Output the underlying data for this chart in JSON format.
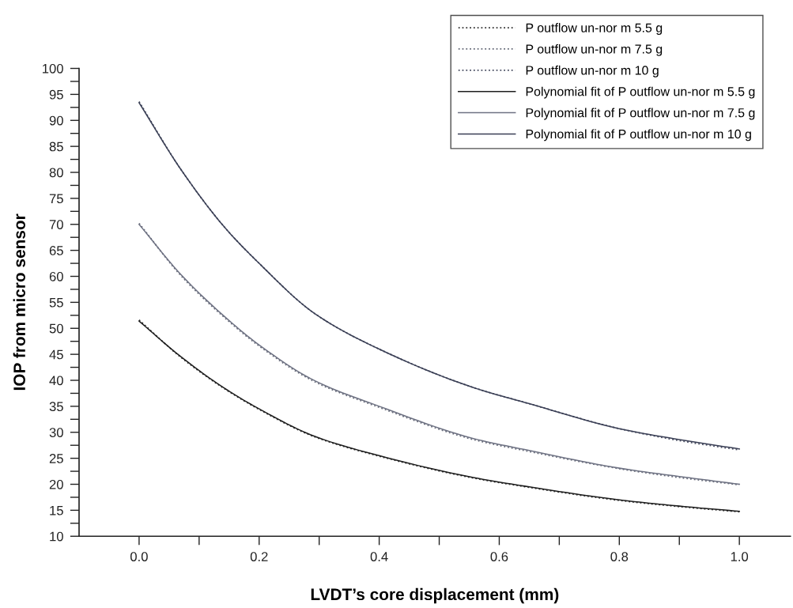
{
  "chart_data": {
    "type": "line",
    "xlabel": "LVDT’s core displacement (mm)",
    "ylabel": "IOP from micro sensor",
    "x": [
      0,
      0.07,
      0.142,
      0.2,
      0.293,
      0.4,
      0.557,
      0.65,
      0.8,
      0.9,
      1
    ],
    "xlim": [
      -0.1,
      1.085
    ],
    "xticks": [
      {
        "value": 0,
        "label": "0.0"
      },
      {
        "value": 0.1,
        "label": null
      },
      {
        "value": 0.2,
        "label": "0.2"
      },
      {
        "value": 0.3,
        "label": null
      },
      {
        "value": 0.4,
        "label": "0.4"
      },
      {
        "value": 0.5,
        "label": null
      },
      {
        "value": 0.6,
        "label": "0.6"
      },
      {
        "value": 0.7,
        "label": null
      },
      {
        "value": 0.8,
        "label": "0.8"
      },
      {
        "value": 0.9,
        "label": null
      },
      {
        "value": 1,
        "label": "1.0"
      }
    ],
    "ylim": [
      10,
      100
    ],
    "yticks": [
      10,
      {
        "value": 12.5,
        "label": null
      },
      15,
      {
        "value": 17.5,
        "label": null
      },
      20,
      {
        "value": 22.5,
        "label": null
      },
      25,
      {
        "value": 27.5,
        "label": null
      },
      30,
      {
        "value": 32.5,
        "label": null
      },
      35,
      {
        "value": 37.5,
        "label": null
      },
      40,
      {
        "value": 42.5,
        "label": null
      },
      45,
      {
        "value": 47.5,
        "label": null
      },
      50,
      {
        "value": 52.5,
        "label": null
      },
      55,
      {
        "value": 57.5,
        "label": null
      },
      60,
      {
        "value": 62.5,
        "label": null
      },
      65,
      {
        "value": 67.5,
        "label": null
      },
      70,
      {
        "value": 72.5,
        "label": null
      },
      75,
      {
        "value": 77.5,
        "label": null
      },
      80,
      {
        "value": 82.5,
        "label": null
      },
      85,
      {
        "value": 87.5,
        "label": null
      },
      90,
      {
        "value": 92.5,
        "label": null
      },
      95,
      {
        "value": 97.5,
        "label": null
      },
      100
    ],
    "grid": false,
    "legend": "top right",
    "marker": "none",
    "series": [
      {
        "name": "P outflow un-nor m 5.5 g",
        "color": "#333333",
        "line_style": "dotted",
        "values": [
          51.6,
          44.4,
          38.4,
          34.4,
          29.1,
          25.4,
          21.2,
          19.4,
          16.9,
          15.7,
          14.7
        ]
      },
      {
        "name": "P outflow un-nor m 7.5 g",
        "color": "#666a78",
        "line_style": "dotted",
        "values": [
          70.2,
          60.1,
          52.1,
          46.6,
          39.7,
          34.8,
          28.6,
          26.3,
          23.0,
          21.3,
          19.9
        ]
      },
      {
        "name": "P outflow un-nor m 10 g",
        "color": "#4a4f63",
        "line_style": "dotted",
        "values": [
          93.6,
          80.5,
          69.5,
          62.5,
          52.8,
          46.0,
          38.6,
          35.5,
          30.7,
          28.4,
          26.6
        ]
      },
      {
        "name": "Polynomial fit of P outflow un-nor m 5.5 g",
        "color": "#1e1e1e",
        "line_style": "solid",
        "values": [
          51.4,
          44.5,
          38.5,
          34.5,
          29.2,
          25.5,
          21.3,
          19.5,
          17.0,
          15.8,
          14.8
        ]
      },
      {
        "name": "Polynomial fit of P outflow un-nor m 7.5 g",
        "color": "#6e7283",
        "line_style": "solid",
        "values": [
          70.0,
          60.3,
          52.3,
          46.8,
          39.9,
          35.0,
          28.8,
          26.5,
          23.1,
          21.5,
          20.0
        ]
      },
      {
        "name": "Polynomial fit of P outflow un-nor m 10 g",
        "color": "#3a3f55",
        "line_style": "solid",
        "values": [
          93.4,
          80.5,
          69.5,
          62.5,
          52.8,
          46.0,
          38.6,
          35.5,
          30.7,
          28.6,
          26.8
        ]
      }
    ]
  }
}
